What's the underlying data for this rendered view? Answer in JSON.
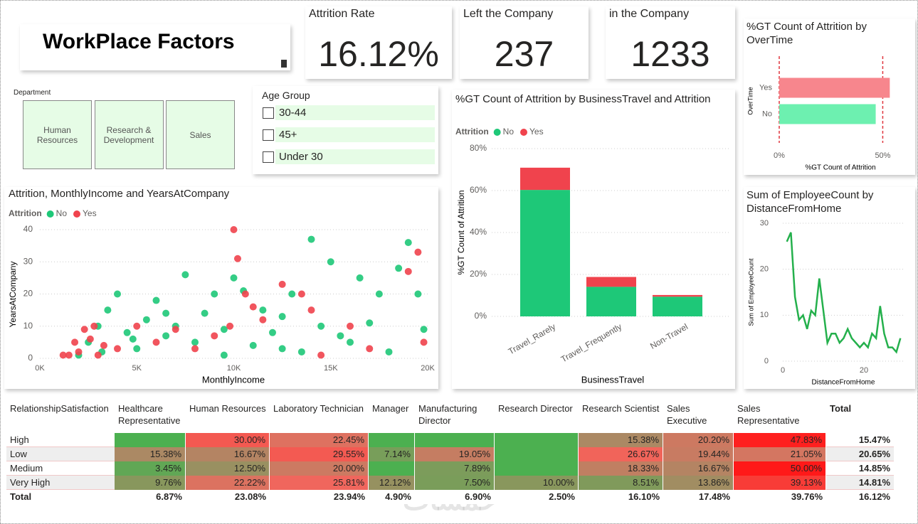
{
  "title": "WorkPlace Factors",
  "kpis": [
    {
      "label": "Attrition Rate",
      "value": "16.12%"
    },
    {
      "label": "Left the Company",
      "value": "237"
    },
    {
      "label": "in the Company",
      "value": "1233"
    }
  ],
  "department": {
    "title": "Department",
    "items": [
      "Human Resources",
      "Research & Development",
      "Sales"
    ]
  },
  "age_group": {
    "title": "Age Group",
    "items": [
      "30-44",
      "45+",
      "Under 30"
    ]
  },
  "chart_data": [
    {
      "type": "hbar",
      "title": "%GT Count of Attrition by OverTime",
      "x_label": "%GT Count of Attrition",
      "y_label": "OverTime",
      "categories": [
        "Yes",
        "No"
      ],
      "values": [
        53.4,
        46.6
      ],
      "colors": [
        "#f7868d",
        "#6df0b0"
      ],
      "xlim": [
        0,
        55
      ],
      "xticks": [
        {
          "value": 0,
          "label": "0%"
        },
        {
          "value": 50,
          "label": "50%"
        }
      ],
      "grid_color": "#e0353d"
    },
    {
      "type": "stacked_bar",
      "title": "%GT Count of Attrition by BusinessTravel and Attrition",
      "legend_title": "Attrition",
      "x_label": "BusinessTravel",
      "y_label": "%GT Count of Attrition",
      "categories": [
        "Travel_Rarely",
        "Travel_Frequently",
        "Non-Travel"
      ],
      "series": [
        {
          "name": "No",
          "color": "#1ec878",
          "values": [
            60.3,
            14.1,
            9.4
          ]
        },
        {
          "name": "Yes",
          "color": "#f0434d",
          "values": [
            10.6,
            4.7,
            0.8
          ]
        }
      ],
      "ylim": [
        0,
        80
      ],
      "yticks": [
        {
          "value": 0,
          "label": "0%"
        },
        {
          "value": 20,
          "label": "20%"
        },
        {
          "value": 40,
          "label": "40%"
        },
        {
          "value": 60,
          "label": "60%"
        },
        {
          "value": 80,
          "label": "80%"
        }
      ],
      "grid": true
    },
    {
      "type": "scatter",
      "title": "Attrition, MonthlyIncome and YearsAtCompany",
      "legend_title": "Attrition",
      "x_label": "MonthlyIncome",
      "y_label": "YearsAtCompany",
      "series": [
        {
          "name": "No",
          "color": "#1ec878",
          "x": [
            2000,
            2500,
            3000,
            3500,
            4000,
            4500,
            5000,
            5500,
            6000,
            6500,
            7000,
            7500,
            8000,
            8500,
            9000,
            9500,
            10000,
            10500,
            11000,
            11500,
            12000,
            12500,
            13000,
            13500,
            14000,
            14500,
            15000,
            15500,
            16000,
            16500,
            17000,
            17500,
            18000,
            18500,
            19000,
            19500,
            19800,
            12500,
            9500,
            6500,
            4800,
            3200
          ],
          "values": [
            1,
            5,
            10,
            15,
            20,
            8,
            3,
            12,
            18,
            7,
            10,
            26,
            5,
            14,
            20,
            9,
            25,
            21,
            4,
            15,
            8,
            13,
            20,
            2,
            37,
            10,
            30,
            7,
            5,
            25,
            11,
            20,
            2,
            28,
            36,
            20,
            9,
            3,
            1,
            14,
            6,
            2
          ]
        },
        {
          "name": "Yes",
          "color": "#f0434d",
          "x": [
            1200,
            1500,
            2000,
            2300,
            2600,
            3000,
            3300,
            2800,
            4000,
            5000,
            6000,
            7000,
            8000,
            9000,
            9800,
            10000,
            10200,
            10600,
            11000,
            12500,
            13500,
            14000,
            14500,
            16000,
            17000,
            19000,
            19500,
            19800,
            11500,
            1800
          ],
          "values": [
            1,
            1,
            2,
            9,
            6,
            1,
            4,
            10,
            3,
            10,
            5,
            9,
            3,
            7,
            10,
            40,
            31,
            20,
            16,
            23,
            20,
            15,
            1,
            10,
            3,
            27,
            33,
            5,
            12,
            5
          ]
        }
      ],
      "xlim": [
        0,
        20000
      ],
      "xticks": [
        {
          "value": 0,
          "label": "0K"
        },
        {
          "value": 5000,
          "label": "5K"
        },
        {
          "value": 10000,
          "label": "10K"
        },
        {
          "value": 15000,
          "label": "15K"
        },
        {
          "value": 20000,
          "label": "20K"
        }
      ],
      "ylim": [
        0,
        40
      ],
      "yticks": [
        0,
        10,
        20,
        30,
        40
      ],
      "grid": true
    },
    {
      "type": "line",
      "title": "Sum of EmployeeCount by DistanceFromHome",
      "x_label": "DistanceFromHome",
      "y_label": "Sum of EmployeeCount",
      "color": "#24b04c",
      "x": [
        1,
        2,
        3,
        4,
        5,
        6,
        7,
        8,
        9,
        10,
        11,
        12,
        13,
        14,
        15,
        16,
        17,
        18,
        19,
        20,
        21,
        22,
        23,
        24,
        25,
        26,
        27,
        28,
        29
      ],
      "values": [
        26,
        28,
        14,
        9,
        10,
        7,
        11,
        10,
        18,
        11,
        4,
        6,
        6,
        4,
        5,
        7,
        5,
        4,
        3,
        4,
        3,
        6,
        5,
        12,
        6,
        3,
        3,
        2,
        5
      ],
      "xlim": [
        0,
        30
      ],
      "xticks": [
        0,
        20
      ],
      "ylim": [
        0,
        30
      ],
      "yticks": [
        0,
        10,
        20,
        30
      ],
      "grid": true
    }
  ],
  "table": {
    "header": [
      "RelationshipSatisfaction",
      "Healthcare Representative",
      "Human Resources",
      "Laboratory Technician",
      "Manager",
      "Manufacturing Director",
      "Research Director",
      "Research Scientist",
      "Sales Executive",
      "Sales Representative",
      "Total"
    ],
    "rows": [
      [
        "High",
        null,
        "30.00%",
        "22.45%",
        null,
        null,
        null,
        "15.38%",
        "20.20%",
        "47.83%",
        "15.47%"
      ],
      [
        "Low",
        "15.38%",
        "16.67%",
        "29.55%",
        "7.14%",
        "19.05%",
        null,
        "26.67%",
        "19.44%",
        "21.05%",
        "20.65%"
      ],
      [
        "Medium",
        "3.45%",
        "12.50%",
        "20.00%",
        null,
        "7.89%",
        null,
        "18.33%",
        "16.67%",
        "50.00%",
        "14.85%"
      ],
      [
        "Very High",
        "9.76%",
        "22.22%",
        "25.81%",
        "12.12%",
        "7.50%",
        "10.00%",
        "8.51%",
        "13.86%",
        "39.13%",
        "14.81%"
      ],
      [
        "Total",
        "6.87%",
        "23.08%",
        "23.94%",
        "4.90%",
        "6.90%",
        "2.50%",
        "16.10%",
        "17.48%",
        "39.76%",
        "16.12%"
      ]
    ]
  },
  "watermark": "خمسات"
}
